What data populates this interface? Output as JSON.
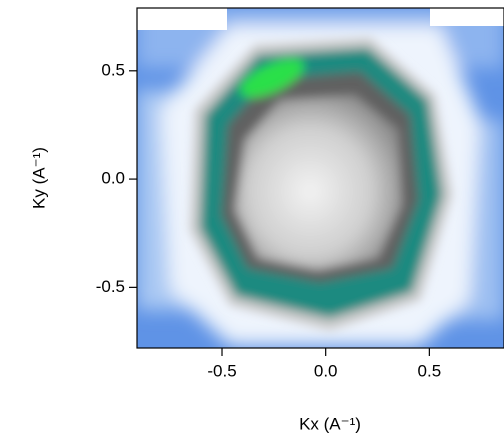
{
  "chart_data": {
    "type": "image",
    "xlabel": "Kx (A⁻¹)",
    "ylabel": "Ky (A⁻¹)",
    "xlim": [
      -0.91,
      0.86
    ],
    "xticks": [
      -0.5,
      {
        "value": 0,
        "label": "0.0"
      },
      0.5
    ],
    "ylim": [
      -0.78,
      0.79
    ],
    "yticks": [
      -0.5,
      {
        "value": 0,
        "label": "0.0"
      },
      0.5
    ]
  }
}
